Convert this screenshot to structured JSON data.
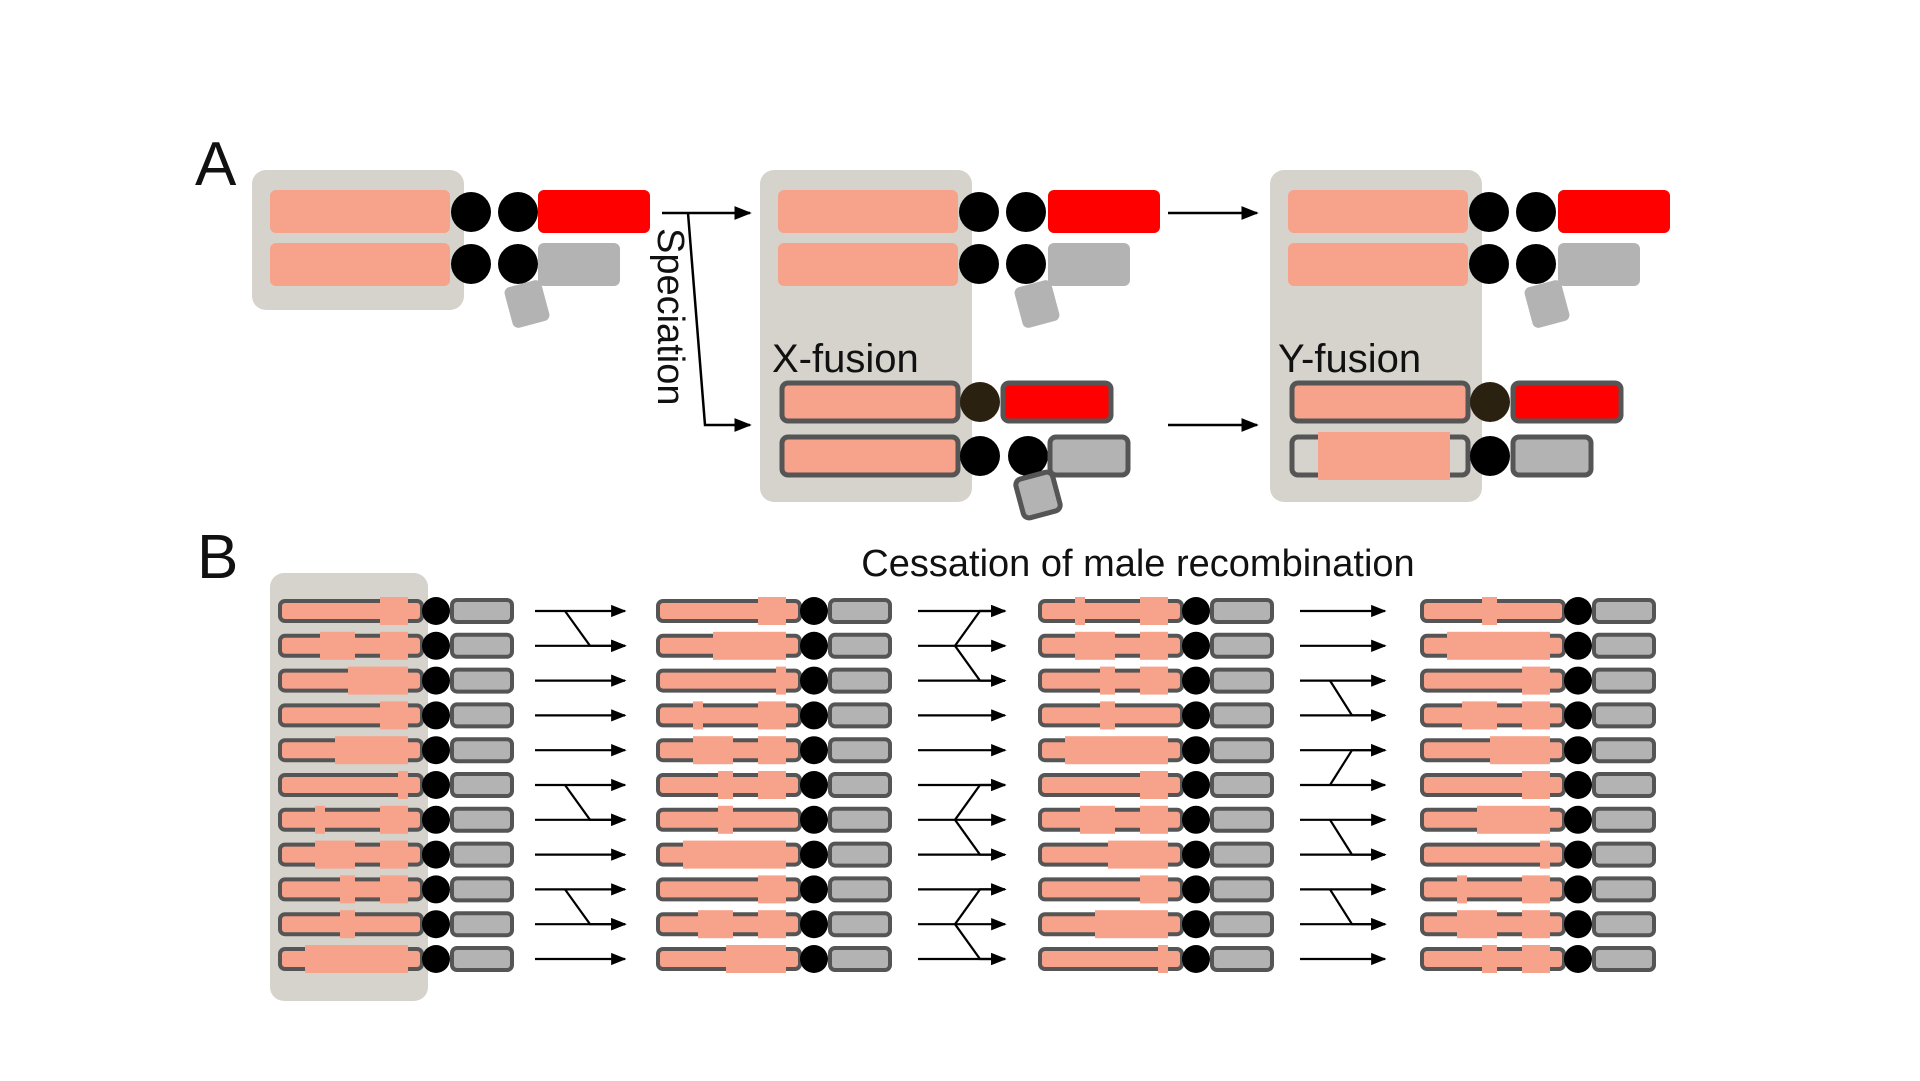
{
  "panel_a": {
    "label": "A",
    "speciation_label": "Speciation",
    "x_fusion_label": "X-fusion",
    "y_fusion_label": "Y-fusion"
  },
  "panel_b": {
    "label": "B",
    "title": "Cessation of male recombination"
  },
  "colors": {
    "autosome": "#f7a28a",
    "x_chromosome": "#ff0000",
    "y_chromosome": "#b3b3b3",
    "centromere": "#000000",
    "fused_centromere": "#2b2110",
    "box": "#d6d3cd",
    "outline": "#555555"
  }
}
